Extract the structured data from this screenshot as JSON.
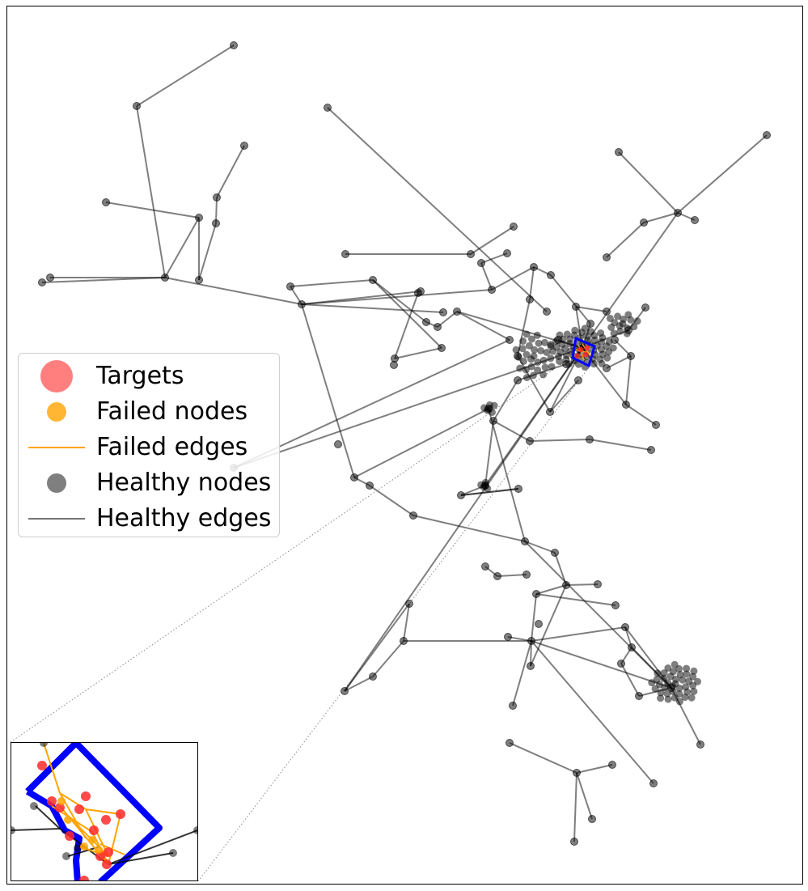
{
  "figure": {
    "colors": {
      "healthy": "#000000",
      "target": "#ff2a2a",
      "failed": "#ffa500",
      "boundary": "#0000ff",
      "frame": "#000000"
    }
  },
  "legend": {
    "position": "center-left",
    "items": [
      {
        "key": "targets",
        "label": "Targets",
        "symbol": "large-circle",
        "color": "#ff6f6f"
      },
      {
        "key": "failed_nodes",
        "label": "Failed nodes",
        "symbol": "circle",
        "color": "#ffb52e"
      },
      {
        "key": "failed_edges",
        "label": "Failed edges",
        "symbol": "line",
        "color": "#ffa500"
      },
      {
        "key": "healthy_nodes",
        "label": "Healthy nodes",
        "symbol": "circle",
        "color": "#7a7a7a"
      },
      {
        "key": "healthy_edges",
        "label": "Healthy edges",
        "symbol": "line",
        "color": "#7a7a7a"
      }
    ]
  },
  "inset": {
    "shows": "zoomed view of failed region",
    "boundary_color": "#0000ff"
  }
}
